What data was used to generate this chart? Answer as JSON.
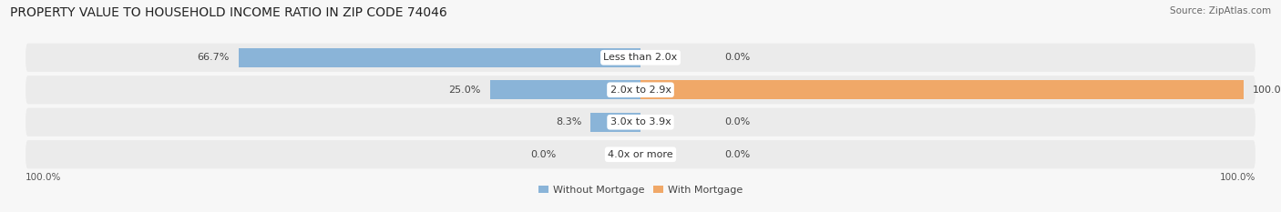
{
  "title": "PROPERTY VALUE TO HOUSEHOLD INCOME RATIO IN ZIP CODE 74046",
  "source": "Source: ZipAtlas.com",
  "categories": [
    "Less than 2.0x",
    "2.0x to 2.9x",
    "3.0x to 3.9x",
    "4.0x or more"
  ],
  "without_mortgage": [
    66.7,
    25.0,
    8.3,
    0.0
  ],
  "with_mortgage": [
    0.0,
    100.0,
    0.0,
    0.0
  ],
  "color_blue": "#8ab4d8",
  "color_orange": "#f0a868",
  "color_bg_fig": "#f7f7f7",
  "color_row_bg": "#ebebeb",
  "title_fontsize": 10,
  "label_fontsize": 8,
  "source_fontsize": 7.5,
  "legend_fontsize": 8,
  "tick_fontsize": 7.5,
  "bar_height": 0.6
}
